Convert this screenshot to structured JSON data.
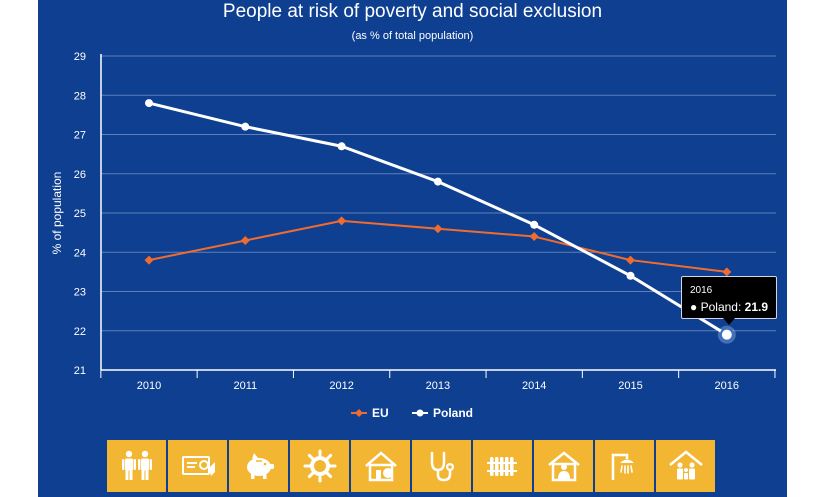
{
  "chart_data": {
    "type": "line",
    "title": "People at risk of poverty and social exclusion",
    "subtitle": "(as % of total population)",
    "xlabel": "",
    "ylabel": "% of population",
    "categories": [
      "2010",
      "2011",
      "2012",
      "2013",
      "2014",
      "2015",
      "2016"
    ],
    "yticks": [
      "21",
      "22",
      "23",
      "24",
      "25",
      "26",
      "27",
      "28",
      "29"
    ],
    "ylim": [
      21,
      29
    ],
    "grid": true,
    "legend_position": "bottom-center",
    "series": [
      {
        "name": "EU",
        "values": [
          23.8,
          24.3,
          24.8,
          24.6,
          24.4,
          23.8,
          23.5
        ],
        "color": "#ef6c2e",
        "marker": "diamond"
      },
      {
        "name": "Poland",
        "values": [
          27.8,
          27.2,
          26.7,
          25.8,
          24.7,
          23.4,
          21.9
        ],
        "color": "#ffffff",
        "marker": "circle"
      }
    ],
    "tooltip": {
      "date": "2016",
      "bullet": "●",
      "series": "Poland",
      "separator": ":",
      "value": "21.9",
      "point_index": 6
    }
  },
  "colors": {
    "panel_bg": "#0e3f91",
    "grid": "#5f7fb8",
    "axis": "#ffffff",
    "toolbar_button": "#f2b632",
    "toolbar_button_active": "#f07131"
  },
  "toolbar": {
    "buttons": [
      {
        "icon": "family-icon",
        "active": true
      },
      {
        "icon": "payment-card-icon",
        "active": false
      },
      {
        "icon": "piggy-bank-icon",
        "active": false
      },
      {
        "icon": "gear-coin-icon",
        "active": false
      },
      {
        "icon": "house-euro-icon",
        "active": false
      },
      {
        "icon": "stethoscope-icon",
        "active": false
      },
      {
        "icon": "radiator-icon",
        "active": false
      },
      {
        "icon": "house-person-icon",
        "active": false
      },
      {
        "icon": "shower-icon",
        "active": false
      },
      {
        "icon": "house-family-icon",
        "active": false
      }
    ]
  }
}
